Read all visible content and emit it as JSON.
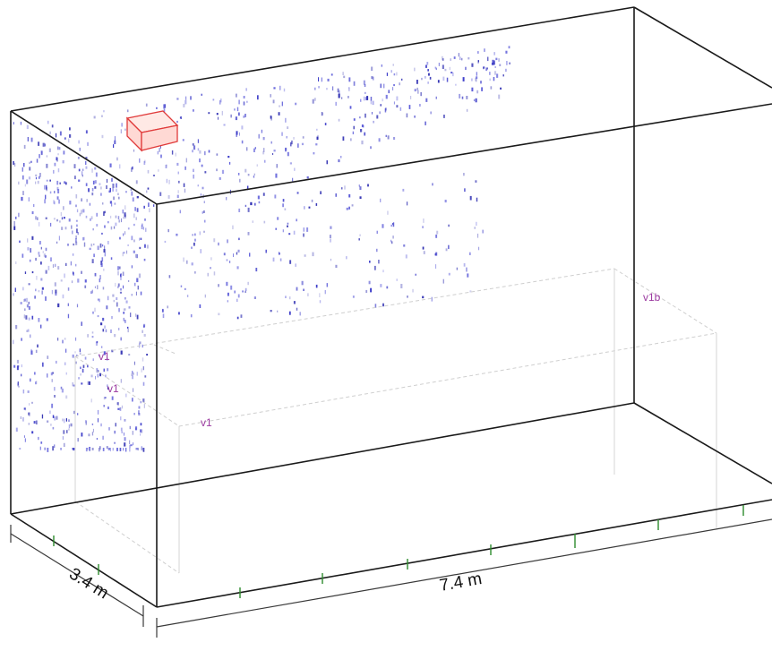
{
  "dimensions": {
    "width_label": "3.4 m",
    "length_label": "7.4 m"
  },
  "labels": {
    "v1_a": "v1",
    "v1_b": "v1",
    "v1_c": "v1",
    "v1b": "v1b"
  },
  "colors": {
    "edge": "#1a1a1a",
    "label": "#9b3aa0",
    "particle": "#3a3ac8",
    "object": "#e03a3a",
    "tick": "#2e8b2e"
  }
}
